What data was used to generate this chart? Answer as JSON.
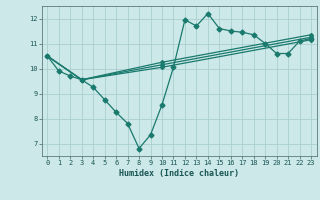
{
  "title": "",
  "xlabel": "Humidex (Indice chaleur)",
  "bg_color": "#cce8e8",
  "line_color": "#1a7a6e",
  "grid_color": "#aacfcf",
  "xlim": [
    -0.5,
    23.5
  ],
  "ylim": [
    6.5,
    12.5
  ],
  "xticks": [
    0,
    1,
    2,
    3,
    4,
    5,
    6,
    7,
    8,
    9,
    10,
    11,
    12,
    13,
    14,
    15,
    16,
    17,
    18,
    19,
    20,
    21,
    22,
    23
  ],
  "yticks": [
    7,
    8,
    9,
    10,
    11,
    12
  ],
  "line1_x": [
    0,
    1,
    2,
    3,
    4,
    5,
    6,
    7,
    8,
    9,
    10,
    11,
    12,
    13,
    14,
    15,
    16,
    17,
    18,
    19,
    20,
    21,
    22,
    23
  ],
  "line1_y": [
    10.5,
    9.9,
    9.7,
    9.55,
    9.25,
    8.75,
    8.25,
    7.8,
    6.8,
    7.35,
    8.55,
    10.05,
    11.95,
    11.7,
    12.2,
    11.6,
    11.5,
    11.45,
    11.35,
    11.0,
    10.6,
    10.6,
    11.1,
    11.2
  ],
  "line2_x": [
    0,
    3,
    10,
    23
  ],
  "line2_y": [
    10.5,
    9.55,
    10.05,
    11.15
  ],
  "line3_x": [
    0,
    3,
    10,
    23
  ],
  "line3_y": [
    10.5,
    9.55,
    10.15,
    11.25
  ],
  "line4_x": [
    0,
    3,
    10,
    23
  ],
  "line4_y": [
    10.5,
    9.55,
    10.25,
    11.35
  ],
  "marker": "D",
  "markersize": 2.5,
  "linewidth": 0.9
}
